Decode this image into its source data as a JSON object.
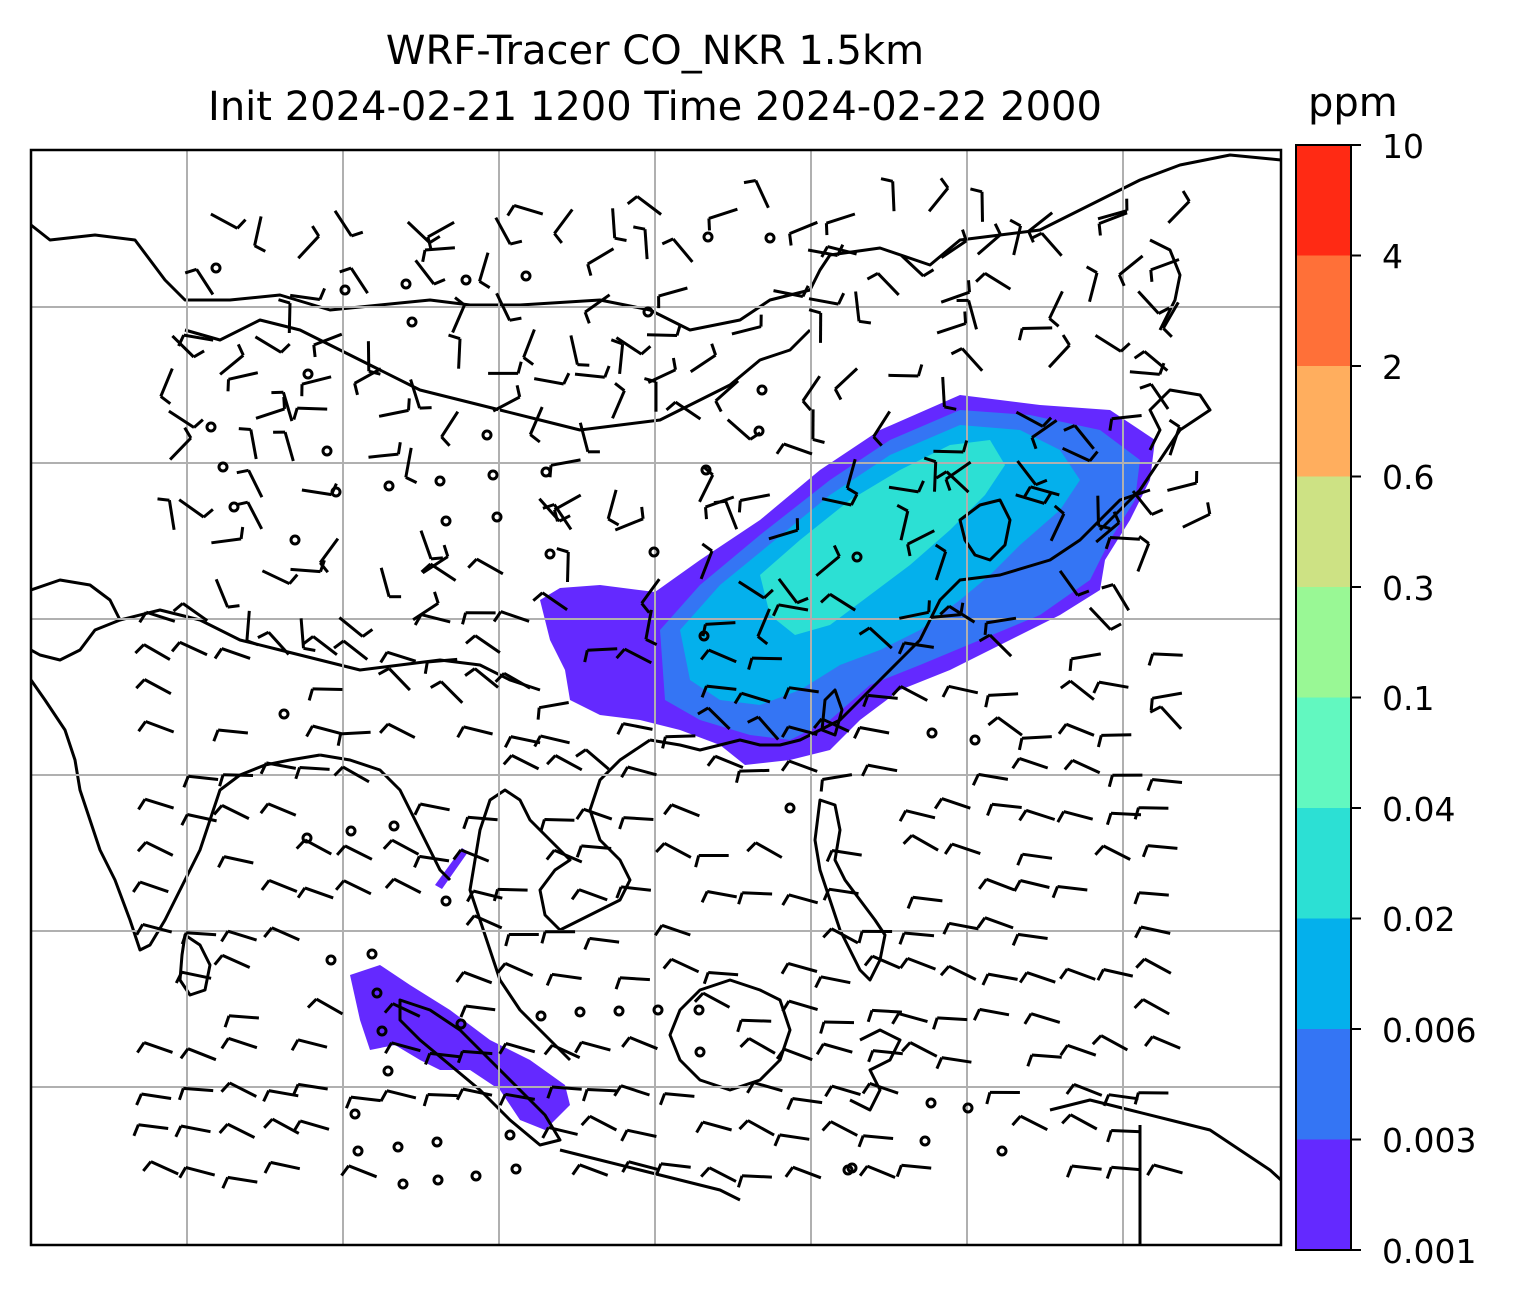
{
  "title": {
    "line1": "WRF-Tracer CO_NKR 1.5km",
    "line2": "Init 2024-02-21 1200 Time 2024-02-22 2000"
  },
  "colorbar": {
    "unit": "ppm",
    "ticks": [
      "10",
      "4",
      "2",
      "0.6",
      "0.3",
      "0.1",
      "0.04",
      "0.02",
      "0.006",
      "0.003",
      "0.001"
    ],
    "colors": [
      "#ff2a14",
      "#ff7038",
      "#ffae5e",
      "#cde284",
      "#99f895",
      "#62f8c0",
      "#2ce0d4",
      "#04b0ec",
      "#3475f4",
      "#6429ff"
    ]
  },
  "map": {
    "gridlines": true,
    "plume_colors": {
      "faint": "#6429ff",
      "low": "#3475f4",
      "mid": "#04b0ec",
      "high": "#2ce0d4"
    }
  }
}
